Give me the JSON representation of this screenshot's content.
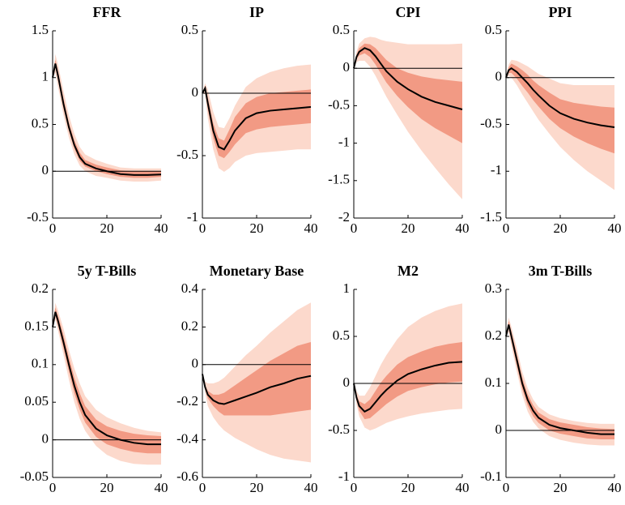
{
  "chart_data": [
    {
      "type": "fan",
      "title": "FFR",
      "x": [
        0,
        1,
        2,
        4,
        6,
        8,
        10,
        12,
        16,
        20,
        25,
        30,
        35,
        40
      ],
      "xlim": [
        0,
        40
      ],
      "xticks": [
        0,
        20,
        40
      ],
      "ylim": [
        -0.5,
        1.5
      ],
      "yticks": [
        -0.5,
        0,
        0.5,
        1,
        1.5
      ],
      "hline": 0,
      "bands": [
        {
          "color": "#fcd9cc",
          "lower": [
            1.0,
            1.05,
            0.9,
            0.6,
            0.36,
            0.18,
            0.06,
            0.0,
            -0.05,
            -0.07,
            -0.1,
            -0.11,
            -0.11,
            -0.1
          ],
          "upper": [
            1.0,
            1.25,
            1.14,
            0.86,
            0.6,
            0.4,
            0.26,
            0.18,
            0.12,
            0.08,
            0.04,
            0.03,
            0.03,
            0.03
          ]
        },
        {
          "color": "#f29a84",
          "lower": [
            1.0,
            1.11,
            0.97,
            0.67,
            0.43,
            0.24,
            0.11,
            0.05,
            0.0,
            -0.03,
            -0.06,
            -0.07,
            -0.07,
            -0.06
          ],
          "upper": [
            1.0,
            1.19,
            1.07,
            0.78,
            0.52,
            0.33,
            0.2,
            0.12,
            0.07,
            0.04,
            0.01,
            0.0,
            0.0,
            0.0
          ]
        }
      ],
      "median": {
        "color": "#000000",
        "values": [
          1.0,
          1.15,
          1.02,
          0.72,
          0.47,
          0.28,
          0.15,
          0.08,
          0.03,
          0.0,
          -0.03,
          -0.04,
          -0.04,
          -0.035
        ]
      }
    },
    {
      "type": "fan",
      "title": "IP",
      "x": [
        0,
        1,
        2,
        4,
        6,
        8,
        10,
        12,
        16,
        20,
        25,
        30,
        35,
        40
      ],
      "xlim": [
        0,
        40
      ],
      "xticks": [
        0,
        20,
        40
      ],
      "ylim": [
        -1,
        0.5
      ],
      "yticks": [
        -1,
        -0.5,
        0,
        0.5
      ],
      "hline": 0,
      "bands": [
        {
          "color": "#fcd9cc",
          "lower": [
            0,
            -0.01,
            -0.2,
            -0.45,
            -0.6,
            -0.63,
            -0.6,
            -0.55,
            -0.5,
            -0.48,
            -0.47,
            -0.46,
            -0.45,
            -0.45
          ],
          "upper": [
            0,
            0.08,
            0.03,
            -0.15,
            -0.27,
            -0.28,
            -0.2,
            -0.1,
            0.05,
            0.12,
            0.17,
            0.2,
            0.22,
            0.23
          ]
        },
        {
          "color": "#f29a84",
          "lower": [
            0,
            0.02,
            -0.13,
            -0.36,
            -0.5,
            -0.52,
            -0.47,
            -0.41,
            -0.32,
            -0.29,
            -0.27,
            -0.26,
            -0.25,
            -0.24
          ],
          "upper": [
            0,
            0.06,
            -0.03,
            -0.24,
            -0.36,
            -0.38,
            -0.29,
            -0.19,
            -0.08,
            -0.03,
            0.0,
            0.01,
            0.02,
            0.03
          ]
        }
      ],
      "median": {
        "color": "#000000",
        "values": [
          0,
          0.04,
          -0.08,
          -0.3,
          -0.43,
          -0.45,
          -0.38,
          -0.3,
          -0.2,
          -0.16,
          -0.14,
          -0.13,
          -0.12,
          -0.11
        ]
      }
    },
    {
      "type": "fan",
      "title": "CPI",
      "x": [
        0,
        1,
        2,
        4,
        6,
        8,
        10,
        12,
        16,
        20,
        25,
        30,
        35,
        40
      ],
      "xlim": [
        0,
        40
      ],
      "xticks": [
        0,
        20,
        40
      ],
      "ylim": [
        -2,
        0.5
      ],
      "yticks": [
        -2,
        -1.5,
        -1,
        -0.5,
        0,
        0.5
      ],
      "hline": 0,
      "bands": [
        {
          "color": "#fcd9cc",
          "lower": [
            0,
            0.08,
            0.1,
            0.1,
            0.02,
            -0.1,
            -0.24,
            -0.38,
            -0.62,
            -0.85,
            -1.1,
            -1.33,
            -1.55,
            -1.75
          ],
          "upper": [
            0,
            0.22,
            0.33,
            0.4,
            0.42,
            0.41,
            0.38,
            0.36,
            0.34,
            0.32,
            0.32,
            0.32,
            0.32,
            0.33
          ]
        },
        {
          "color": "#f29a84",
          "lower": [
            0,
            0.12,
            0.17,
            0.2,
            0.15,
            0.05,
            -0.07,
            -0.19,
            -0.37,
            -0.52,
            -0.68,
            -0.8,
            -0.9,
            -1.0
          ],
          "upper": [
            0,
            0.18,
            0.27,
            0.33,
            0.32,
            0.27,
            0.19,
            0.11,
            0.0,
            -0.06,
            -0.11,
            -0.14,
            -0.16,
            -0.18
          ]
        }
      ],
      "median": {
        "color": "#000000",
        "values": [
          0,
          0.15,
          0.22,
          0.27,
          0.24,
          0.16,
          0.06,
          -0.04,
          -0.18,
          -0.28,
          -0.38,
          -0.45,
          -0.5,
          -0.55
        ]
      }
    },
    {
      "type": "fan",
      "title": "PPI",
      "x": [
        0,
        1,
        2,
        4,
        6,
        8,
        10,
        12,
        16,
        20,
        25,
        30,
        35,
        40
      ],
      "xlim": [
        0,
        40
      ],
      "xticks": [
        0,
        20,
        40
      ],
      "ylim": [
        -1.5,
        0.5
      ],
      "yticks": [
        -1.5,
        -1,
        -0.5,
        0,
        0.5
      ],
      "hline": 0,
      "bands": [
        {
          "color": "#fcd9cc",
          "lower": [
            0,
            0.02,
            0.0,
            -0.08,
            -0.18,
            -0.27,
            -0.36,
            -0.45,
            -0.6,
            -0.74,
            -0.88,
            -1.0,
            -1.1,
            -1.2
          ],
          "upper": [
            0,
            0.14,
            0.19,
            0.18,
            0.15,
            0.12,
            0.08,
            0.04,
            -0.01,
            -0.06,
            -0.08,
            -0.08,
            -0.08,
            -0.08
          ]
        },
        {
          "color": "#f29a84",
          "lower": [
            0,
            0.05,
            0.05,
            -0.01,
            -0.09,
            -0.16,
            -0.24,
            -0.31,
            -0.44,
            -0.54,
            -0.63,
            -0.7,
            -0.76,
            -0.81
          ],
          "upper": [
            0,
            0.11,
            0.15,
            0.12,
            0.08,
            0.03,
            -0.03,
            -0.08,
            -0.16,
            -0.23,
            -0.27,
            -0.29,
            -0.31,
            -0.32
          ]
        }
      ],
      "median": {
        "color": "#000000",
        "values": [
          0,
          0.08,
          0.1,
          0.06,
          0.0,
          -0.06,
          -0.13,
          -0.19,
          -0.3,
          -0.38,
          -0.44,
          -0.48,
          -0.51,
          -0.53
        ]
      }
    },
    {
      "type": "fan",
      "title": "5y T-Bills",
      "x": [
        0,
        1,
        2,
        4,
        6,
        8,
        10,
        12,
        16,
        20,
        25,
        30,
        35,
        40
      ],
      "xlim": [
        0,
        40
      ],
      "xticks": [
        0,
        20,
        40
      ],
      "ylim": [
        -0.05,
        0.2
      ],
      "yticks": [
        -0.05,
        0,
        0.05,
        0.1,
        0.15,
        0.2
      ],
      "hline": 0,
      "bands": [
        {
          "color": "#fcd9cc",
          "lower": [
            0.15,
            0.16,
            0.145,
            0.113,
            0.08,
            0.05,
            0.028,
            0.012,
            -0.008,
            -0.02,
            -0.028,
            -0.032,
            -0.033,
            -0.033
          ],
          "upper": [
            0.15,
            0.182,
            0.172,
            0.148,
            0.12,
            0.095,
            0.075,
            0.058,
            0.04,
            0.03,
            0.022,
            0.016,
            0.012,
            0.01
          ]
        },
        {
          "color": "#f29a84",
          "lower": [
            0.15,
            0.165,
            0.152,
            0.122,
            0.091,
            0.062,
            0.04,
            0.023,
            0.004,
            -0.006,
            -0.012,
            -0.016,
            -0.018,
            -0.018
          ],
          "upper": [
            0.15,
            0.176,
            0.165,
            0.139,
            0.11,
            0.083,
            0.062,
            0.045,
            0.027,
            0.018,
            0.012,
            0.008,
            0.006,
            0.005
          ]
        }
      ],
      "median": {
        "color": "#000000",
        "values": [
          0.15,
          0.17,
          0.158,
          0.13,
          0.1,
          0.072,
          0.05,
          0.033,
          0.015,
          0.006,
          0.0,
          -0.004,
          -0.006,
          -0.006
        ]
      }
    },
    {
      "type": "fan",
      "title": "Monetary Base",
      "x": [
        0,
        1,
        2,
        4,
        6,
        8,
        10,
        12,
        16,
        20,
        25,
        30,
        35,
        40
      ],
      "xlim": [
        0,
        40
      ],
      "xticks": [
        0,
        20,
        40
      ],
      "ylim": [
        -0.6,
        0.4
      ],
      "yticks": [
        -0.6,
        -0.4,
        -0.2,
        0,
        0.2,
        0.4
      ],
      "hline": 0,
      "bands": [
        {
          "color": "#fcd9cc",
          "lower": [
            -0.05,
            -0.15,
            -0.22,
            -0.28,
            -0.32,
            -0.35,
            -0.37,
            -0.39,
            -0.42,
            -0.45,
            -0.48,
            -0.5,
            -0.51,
            -0.52
          ],
          "upper": [
            -0.05,
            -0.09,
            -0.1,
            -0.1,
            -0.09,
            -0.07,
            -0.04,
            -0.01,
            0.05,
            0.1,
            0.17,
            0.23,
            0.29,
            0.33
          ]
        },
        {
          "color": "#f29a84",
          "lower": [
            -0.05,
            -0.13,
            -0.18,
            -0.22,
            -0.25,
            -0.27,
            -0.27,
            -0.27,
            -0.27,
            -0.27,
            -0.27,
            -0.26,
            -0.25,
            -0.24
          ],
          "upper": [
            -0.05,
            -0.11,
            -0.14,
            -0.16,
            -0.16,
            -0.15,
            -0.13,
            -0.11,
            -0.07,
            -0.03,
            0.02,
            0.06,
            0.1,
            0.12
          ]
        }
      ],
      "median": {
        "color": "#000000",
        "values": [
          -0.05,
          -0.12,
          -0.16,
          -0.19,
          -0.205,
          -0.21,
          -0.2,
          -0.19,
          -0.17,
          -0.15,
          -0.12,
          -0.1,
          -0.075,
          -0.06
        ]
      }
    },
    {
      "type": "fan",
      "title": "M2",
      "x": [
        0,
        1,
        2,
        4,
        6,
        8,
        10,
        12,
        16,
        20,
        25,
        30,
        35,
        40
      ],
      "xlim": [
        0,
        40
      ],
      "xticks": [
        0,
        20,
        40
      ],
      "ylim": [
        -1,
        1
      ],
      "yticks": [
        -1,
        -0.5,
        0,
        0.5,
        1
      ],
      "hline": 0,
      "bands": [
        {
          "color": "#fcd9cc",
          "lower": [
            0,
            -0.22,
            -0.35,
            -0.47,
            -0.5,
            -0.48,
            -0.45,
            -0.42,
            -0.38,
            -0.35,
            -0.32,
            -0.3,
            -0.28,
            -0.27
          ],
          "upper": [
            0,
            -0.08,
            -0.13,
            -0.13,
            -0.04,
            0.08,
            0.2,
            0.3,
            0.47,
            0.6,
            0.7,
            0.77,
            0.82,
            0.85
          ]
        },
        {
          "color": "#f29a84",
          "lower": [
            0,
            -0.18,
            -0.29,
            -0.38,
            -0.37,
            -0.32,
            -0.27,
            -0.22,
            -0.14,
            -0.08,
            -0.04,
            -0.01,
            0.01,
            0.02
          ],
          "upper": [
            0,
            -0.12,
            -0.19,
            -0.22,
            -0.17,
            -0.08,
            0.01,
            0.08,
            0.2,
            0.28,
            0.34,
            0.39,
            0.42,
            0.44
          ]
        }
      ],
      "median": {
        "color": "#000000",
        "values": [
          0,
          -0.15,
          -0.24,
          -0.3,
          -0.27,
          -0.2,
          -0.13,
          -0.07,
          0.03,
          0.1,
          0.15,
          0.19,
          0.22,
          0.23
        ]
      }
    },
    {
      "type": "fan",
      "title": "3m T-Bills",
      "x": [
        0,
        1,
        2,
        4,
        6,
        8,
        10,
        12,
        16,
        20,
        25,
        30,
        35,
        40
      ],
      "xlim": [
        0,
        40
      ],
      "xticks": [
        0,
        20,
        40
      ],
      "ylim": [
        -0.1,
        0.3
      ],
      "yticks": [
        -0.1,
        0,
        0.1,
        0.2,
        0.3
      ],
      "hline": 0,
      "bands": [
        {
          "color": "#fcd9cc",
          "lower": [
            0.2,
            0.21,
            0.18,
            0.125,
            0.075,
            0.04,
            0.018,
            0.004,
            -0.012,
            -0.02,
            -0.026,
            -0.03,
            -0.032,
            -0.032
          ],
          "upper": [
            0.2,
            0.24,
            0.22,
            0.175,
            0.125,
            0.09,
            0.066,
            0.05,
            0.034,
            0.026,
            0.02,
            0.016,
            0.014,
            0.014
          ]
        },
        {
          "color": "#f29a84",
          "lower": [
            0.2,
            0.217,
            0.19,
            0.138,
            0.088,
            0.053,
            0.03,
            0.016,
            0.0,
            -0.007,
            -0.012,
            -0.017,
            -0.019,
            -0.019
          ],
          "upper": [
            0.2,
            0.233,
            0.21,
            0.162,
            0.112,
            0.077,
            0.054,
            0.038,
            0.024,
            0.017,
            0.012,
            0.007,
            0.004,
            0.003
          ]
        }
      ],
      "median": {
        "color": "#000000",
        "values": [
          0.2,
          0.225,
          0.2,
          0.15,
          0.1,
          0.065,
          0.042,
          0.027,
          0.012,
          0.005,
          0.0,
          -0.005,
          -0.008,
          -0.008
        ]
      }
    }
  ]
}
